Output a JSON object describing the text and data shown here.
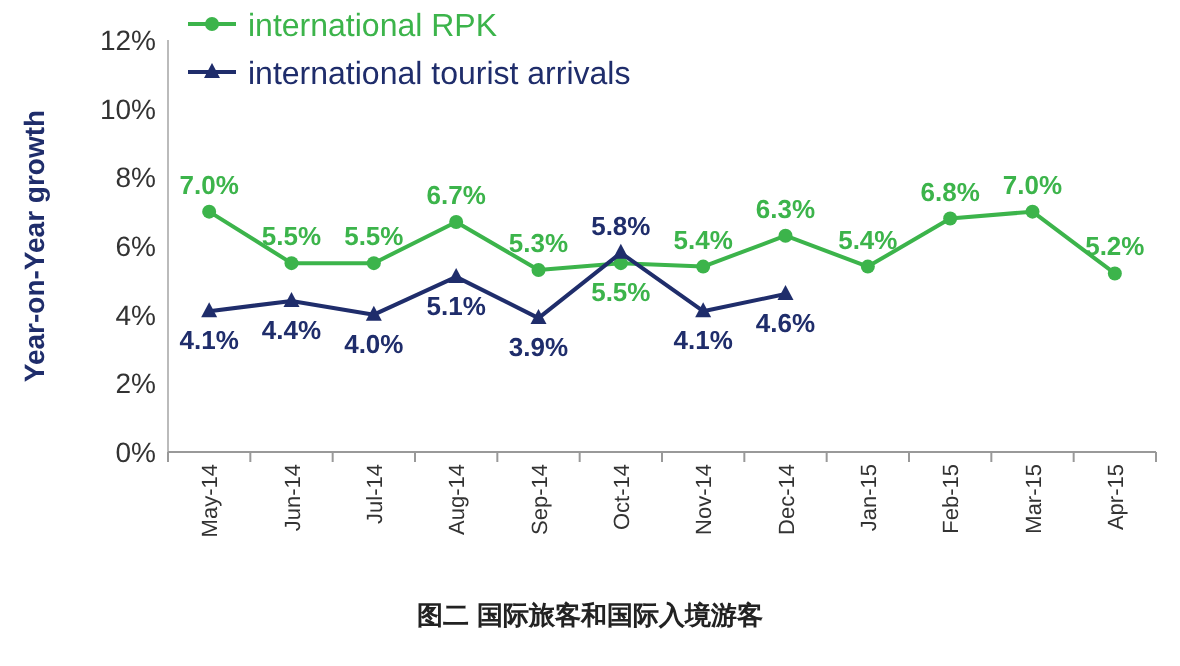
{
  "chart_data": {
    "type": "line",
    "ylabel": "Year-on-Year growth",
    "categories": [
      "May-14",
      "Jun-14",
      "Jul-14",
      "Aug-14",
      "Sep-14",
      "Oct-14",
      "Nov-14",
      "Dec-14",
      "Jan-15",
      "Feb-15",
      "Mar-15",
      "Apr-15"
    ],
    "series": [
      {
        "name": "international RPK",
        "color": "#3cb44b",
        "marker": "circle",
        "value_labels": [
          "7.0%",
          "5.5%",
          "5.5%",
          "6.7%",
          "5.3%",
          "5.5%",
          "5.4%",
          "6.3%",
          "5.4%",
          "6.8%",
          "7.0%",
          "5.2%"
        ],
        "values": [
          7.0,
          5.5,
          5.5,
          6.7,
          5.3,
          5.5,
          5.4,
          6.3,
          5.4,
          6.8,
          7.0,
          5.2
        ]
      },
      {
        "name": "international tourist arrivals",
        "color": "#1f2d6b",
        "marker": "triangle",
        "value_labels": [
          "4.1%",
          "4.4%",
          "4.0%",
          "5.1%",
          "3.9%",
          "5.8%",
          "4.1%",
          "4.6%",
          null,
          null,
          null,
          null
        ],
        "values": [
          4.1,
          4.4,
          4.0,
          5.1,
          3.9,
          5.8,
          4.1,
          4.6,
          null,
          null,
          null,
          null
        ]
      }
    ],
    "ylim": [
      0,
      12
    ],
    "yticks": [
      {
        "value": 0,
        "label": "0%"
      },
      {
        "value": 2,
        "label": "2%"
      },
      {
        "value": 4,
        "label": "4%"
      },
      {
        "value": 6,
        "label": "6%"
      },
      {
        "value": 8,
        "label": "8%"
      },
      {
        "value": 10,
        "label": "10%"
      },
      {
        "value": 12,
        "label": "12%"
      }
    ],
    "legend": "top left",
    "grid": false,
    "annotations": [
      "图二  国际旅客和国际入境游客"
    ]
  }
}
